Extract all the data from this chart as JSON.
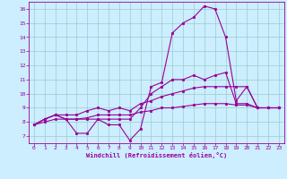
{
  "xlabel": "Windchill (Refroidissement éolien,°C)",
  "xlim": [
    -0.5,
    23.5
  ],
  "ylim": [
    6.5,
    16.5
  ],
  "xticks": [
    0,
    1,
    2,
    3,
    4,
    5,
    6,
    7,
    8,
    9,
    10,
    11,
    12,
    13,
    14,
    15,
    16,
    17,
    18,
    19,
    20,
    21,
    22,
    23
  ],
  "yticks": [
    7,
    8,
    9,
    10,
    11,
    12,
    13,
    14,
    15,
    16
  ],
  "bg_color": "#cceeff",
  "line_color": "#990099",
  "grid_color": "#99cccc",
  "series": {
    "temp": [
      7.8,
      8.2,
      8.5,
      8.2,
      7.2,
      7.2,
      8.2,
      7.8,
      7.8,
      6.7,
      7.5,
      10.5,
      10.8,
      14.3,
      15.0,
      15.4,
      16.2,
      16.0,
      14.0,
      9.5,
      10.5,
      9.0,
      9.0,
      9.0
    ],
    "line2": [
      7.8,
      8.2,
      8.5,
      8.2,
      8.2,
      8.2,
      8.2,
      8.2,
      8.2,
      8.2,
      9.0,
      10.0,
      10.5,
      11.0,
      11.0,
      11.3,
      11.0,
      11.3,
      11.5,
      9.3,
      9.3,
      9.0,
      9.0,
      9.0
    ],
    "line3": [
      7.8,
      8.2,
      8.5,
      8.5,
      8.5,
      8.8,
      9.0,
      8.8,
      9.0,
      8.8,
      9.3,
      9.5,
      9.8,
      10.0,
      10.2,
      10.4,
      10.5,
      10.5,
      10.5,
      10.5,
      10.5,
      9.0,
      9.0,
      9.0
    ],
    "line4": [
      7.8,
      8.0,
      8.2,
      8.2,
      8.2,
      8.3,
      8.5,
      8.5,
      8.5,
      8.5,
      8.7,
      8.8,
      9.0,
      9.0,
      9.1,
      9.2,
      9.3,
      9.3,
      9.3,
      9.2,
      9.2,
      9.0,
      9.0,
      9.0
    ]
  }
}
